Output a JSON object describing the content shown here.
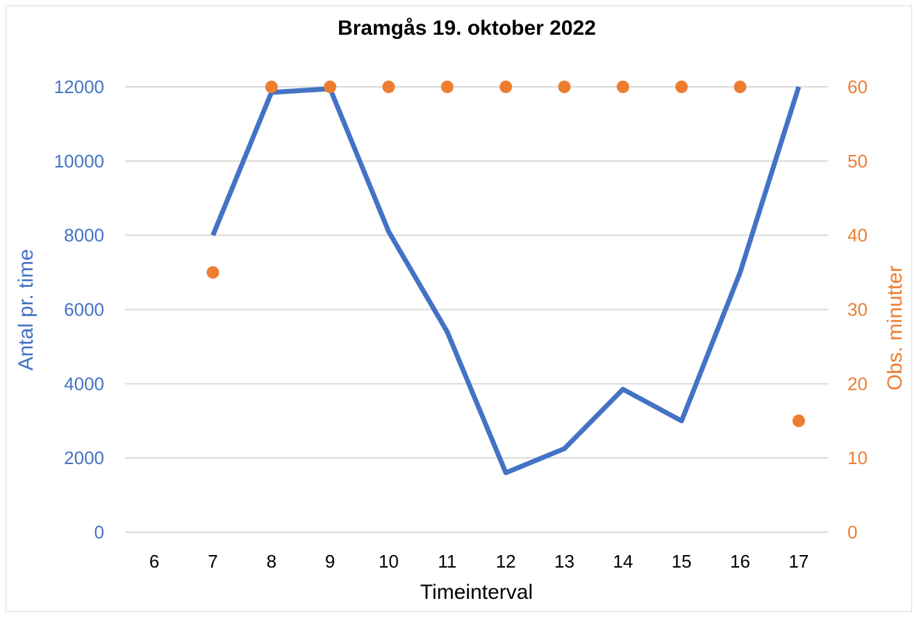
{
  "chart_data": {
    "type": "line",
    "title": "Bramgås 19. oktober 2022",
    "xlabel": "Timeinterval",
    "ylabel_left": "Antal pr. time",
    "ylabel_right": "Obs. minutter",
    "categories": [
      6,
      7,
      8,
      9,
      10,
      11,
      12,
      13,
      14,
      15,
      16,
      17
    ],
    "y_left_lim": [
      0,
      12000
    ],
    "y_left_ticks": [
      0,
      2000,
      4000,
      6000,
      8000,
      10000,
      12000
    ],
    "y_right_lim": [
      0,
      60
    ],
    "y_right_ticks": [
      0,
      10,
      20,
      30,
      40,
      50,
      60
    ],
    "grid": true,
    "series": [
      {
        "axis": "left",
        "style": "line",
        "color": "#4472c4",
        "values": [
          null,
          8000,
          11850,
          11950,
          8100,
          5400,
          1600,
          2250,
          3850,
          3000,
          7000,
          12000
        ]
      },
      {
        "axis": "right",
        "style": "markers",
        "color": "#ed7d31",
        "values": [
          null,
          35,
          60,
          60,
          60,
          60,
          60,
          60,
          60,
          60,
          60,
          15
        ]
      }
    ],
    "colors": {
      "left_axis": "#4472c4",
      "right_axis": "#ed7d31",
      "grid": "#d9d9d9"
    }
  }
}
